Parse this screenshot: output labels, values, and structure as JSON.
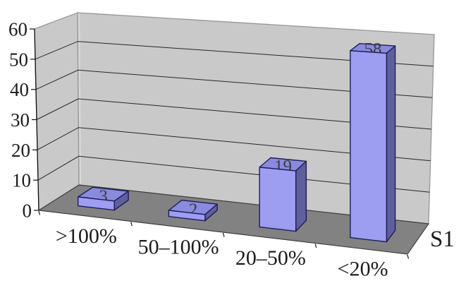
{
  "chart_data": {
    "type": "bar",
    "view": "3d-perspective",
    "title": "",
    "categories": [
      ">100%",
      "50–100%",
      "20–50%",
      "<20%"
    ],
    "values": [
      3,
      2,
      19,
      58
    ],
    "data_labels": [
      "3",
      "2",
      "19",
      "58"
    ],
    "series": [
      {
        "name": "S1",
        "values": [
          3,
          2,
          19,
          58
        ]
      }
    ],
    "series_label": "S1",
    "xlabel": "",
    "ylabel": "",
    "ylim": [
      0,
      60
    ],
    "yticks": [
      0,
      10,
      20,
      30,
      40,
      50,
      60
    ],
    "grid_on": true,
    "legend_position": "none",
    "colors": {
      "background": "#ffffff",
      "wall": "#c9c9c9",
      "wall_edge": "#979797",
      "wall_corner_highlight": "#d8d8d8",
      "floor": "#828282",
      "floor_edge": "#3f3f3f",
      "gridline": "#262626",
      "axis": "#111111",
      "bar_front": "#9d9df2",
      "bar_top": "#8a8adf",
      "bar_side": "#5f5f9e",
      "bar_outline": "#1d1d55",
      "text": "#1c1c1c",
      "data_label_text": "#3d3d3d"
    }
  }
}
